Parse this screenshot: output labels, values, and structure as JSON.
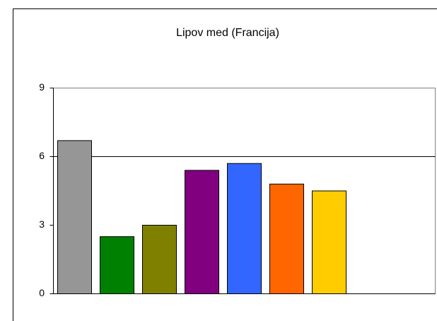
{
  "chart_data": {
    "type": "bar",
    "title": "Lipov med (Francija)",
    "categories": [
      null,
      null,
      null,
      null,
      null,
      null,
      null,
      null,
      null
    ],
    "values": [
      6.7,
      2.5,
      3.0,
      5.4,
      5.7,
      4.8,
      4.5,
      null,
      null
    ],
    "colors": [
      "#969696",
      "#008000",
      "#808000",
      "#800080",
      "#3366ff",
      "#ff6600",
      "#ffcc00",
      null,
      null
    ],
    "ylim": [
      0,
      9
    ],
    "yticks": [
      0,
      3,
      6,
      9
    ],
    "gridlines": [
      6
    ]
  }
}
